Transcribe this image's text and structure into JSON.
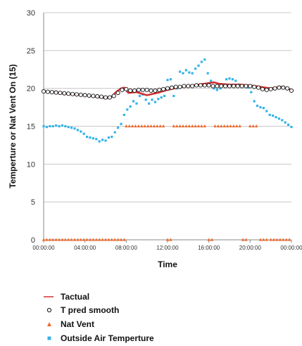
{
  "chart_data": {
    "type": "line",
    "xlabel": "Time",
    "ylabel": "Temperture or Nat Vent On (15)",
    "ylim": [
      0,
      30
    ],
    "yticks": [
      0,
      5,
      10,
      15,
      20,
      25,
      30
    ],
    "xlim": [
      0,
      24
    ],
    "xticks": [
      {
        "value": 0,
        "label": "00:00:00"
      },
      {
        "value": 4,
        "label": "04:00:00"
      },
      {
        "value": 8,
        "label": "08:00:00"
      },
      {
        "value": 12,
        "label": "12:00:00"
      },
      {
        "value": 16,
        "label": "16:00:00"
      },
      {
        "value": 20,
        "label": "20:00:00"
      },
      {
        "value": 24,
        "label": "00:00:00"
      }
    ],
    "grid": "horizontal",
    "legend_position": "bottom-left",
    "series": [
      {
        "name": "Tactual",
        "kind": "line",
        "color": "#d62f2f",
        "x": [
          0,
          1,
          2,
          3,
          4,
          5,
          6,
          6.5,
          7,
          7.5,
          7.8,
          8.2,
          9,
          10,
          11,
          12,
          13,
          14,
          15,
          16,
          16.5,
          17,
          18,
          19,
          20,
          21,
          22,
          23,
          24
        ],
        "y": [
          19.6,
          19.5,
          19.3,
          19.2,
          19.1,
          18.9,
          18.7,
          18.8,
          19.5,
          20.0,
          20.1,
          19.4,
          19.5,
          19.1,
          19.4,
          19.8,
          20.1,
          20.3,
          20.5,
          20.7,
          20.8,
          20.6,
          20.5,
          20.5,
          20.4,
          20.2,
          20.0,
          20.2,
          19.8
        ]
      },
      {
        "name": "T pred smooth",
        "kind": "circle",
        "color": "#111111",
        "x": [
          0,
          0.4,
          0.8,
          1.2,
          1.6,
          2,
          2.4,
          2.8,
          3.2,
          3.6,
          4,
          4.4,
          4.8,
          5.2,
          5.6,
          6,
          6.4,
          6.8,
          7.2,
          7.6,
          8,
          8.4,
          8.8,
          9.2,
          9.6,
          10,
          10.4,
          10.8,
          11.2,
          11.6,
          12,
          12.4,
          12.8,
          13.2,
          13.6,
          14,
          14.4,
          14.8,
          15.2,
          15.6,
          16,
          16.4,
          16.8,
          17.2,
          17.6,
          18,
          18.4,
          18.8,
          19.2,
          19.6,
          20,
          20.4,
          20.8,
          21.2,
          21.6,
          22,
          22.4,
          22.8,
          23.2,
          23.6,
          24
        ],
        "y": [
          19.6,
          19.55,
          19.5,
          19.45,
          19.4,
          19.35,
          19.3,
          19.25,
          19.2,
          19.15,
          19.1,
          19.05,
          19.0,
          18.95,
          18.9,
          18.8,
          18.8,
          19.0,
          19.4,
          19.8,
          19.9,
          19.7,
          19.7,
          19.8,
          19.8,
          19.8,
          19.7,
          19.7,
          19.8,
          19.9,
          20.0,
          20.1,
          20.2,
          20.2,
          20.3,
          20.3,
          20.3,
          20.4,
          20.4,
          20.4,
          20.4,
          20.3,
          20.3,
          20.3,
          20.3,
          20.3,
          20.3,
          20.3,
          20.3,
          20.3,
          20.3,
          20.2,
          20.1,
          19.9,
          19.8,
          19.9,
          20.0,
          20.1,
          20.1,
          20.0,
          19.7
        ]
      },
      {
        "name": "Nat Vent",
        "kind": "triangle",
        "color": "#f06a2c",
        "x": [
          0,
          0.3,
          0.6,
          0.9,
          1.2,
          1.5,
          1.8,
          2.1,
          2.4,
          2.7,
          3.0,
          3.3,
          3.6,
          3.9,
          4.2,
          4.5,
          4.8,
          5.1,
          5.4,
          5.7,
          6.0,
          6.3,
          6.6,
          6.9,
          7.2,
          7.5,
          7.8,
          8.0,
          8.3,
          8.6,
          8.9,
          9.2,
          9.5,
          9.8,
          10.1,
          10.4,
          10.7,
          11.0,
          11.3,
          11.6,
          12.0,
          12.3,
          12.6,
          12.9,
          13.2,
          13.5,
          13.8,
          14.1,
          14.4,
          14.7,
          15.0,
          15.3,
          15.6,
          16.0,
          16.3,
          16.6,
          16.9,
          17.2,
          17.5,
          17.8,
          18.1,
          18.4,
          18.7,
          19.0,
          19.3,
          19.6,
          20.0,
          20.3,
          20.6,
          21.0,
          21.3,
          21.6,
          22.0,
          22.3,
          22.6,
          22.9,
          23.2,
          23.5,
          23.8
        ],
        "y": [
          0,
          0,
          0,
          0,
          0,
          0,
          0,
          0,
          0,
          0,
          0,
          0,
          0,
          0,
          0,
          0,
          0,
          0,
          0,
          0,
          0,
          0,
          0,
          0,
          0,
          0,
          0,
          15,
          15,
          15,
          15,
          15,
          15,
          15,
          15,
          15,
          15,
          15,
          15,
          15,
          0,
          0,
          15,
          15,
          15,
          15,
          15,
          15,
          15,
          15,
          15,
          15,
          15,
          0,
          0,
          15,
          15,
          15,
          15,
          15,
          15,
          15,
          15,
          15,
          0,
          0,
          15,
          15,
          15,
          0,
          0,
          0,
          0,
          0,
          0,
          0,
          0,
          0,
          0
        ]
      },
      {
        "name": "Outside Air Temperture",
        "kind": "square",
        "color": "#36b3e8",
        "x": [
          0,
          0.3,
          0.6,
          0.9,
          1.2,
          1.5,
          1.8,
          2.1,
          2.4,
          2.7,
          3.0,
          3.3,
          3.6,
          3.9,
          4.2,
          4.5,
          4.8,
          5.1,
          5.4,
          5.7,
          6.0,
          6.3,
          6.6,
          6.9,
          7.2,
          7.5,
          7.8,
          8.1,
          8.4,
          8.7,
          9.0,
          9.3,
          9.6,
          9.9,
          10.2,
          10.5,
          10.8,
          11.1,
          11.4,
          11.7,
          12.0,
          12.3,
          12.6,
          12.9,
          13.2,
          13.5,
          13.8,
          14.1,
          14.4,
          14.7,
          15.0,
          15.3,
          15.6,
          15.9,
          16.2,
          16.5,
          16.8,
          17.1,
          17.4,
          17.7,
          18.0,
          18.3,
          18.6,
          18.9,
          19.2,
          19.5,
          19.8,
          20.1,
          20.4,
          20.7,
          21.0,
          21.3,
          21.6,
          21.9,
          22.2,
          22.5,
          22.8,
          23.1,
          23.4,
          23.7,
          24.0
        ],
        "y": [
          15.0,
          14.9,
          15.0,
          15.0,
          15.1,
          15.0,
          15.1,
          15.0,
          14.9,
          14.8,
          14.7,
          14.5,
          14.3,
          14.0,
          13.6,
          13.5,
          13.4,
          13.3,
          13.0,
          13.2,
          13.1,
          13.5,
          13.6,
          14.2,
          14.8,
          15.3,
          16.5,
          17.2,
          17.6,
          18.3,
          18.0,
          19.0,
          19.2,
          18.5,
          18.0,
          18.5,
          18.2,
          18.6,
          18.8,
          19.0,
          21.1,
          21.2,
          19.0,
          20.0,
          22.2,
          22.0,
          22.4,
          22.1,
          22.0,
          22.6,
          23.0,
          23.5,
          23.8,
          22.0,
          21.0,
          20.0,
          19.8,
          20.0,
          20.4,
          21.2,
          21.3,
          21.2,
          21.0,
          20.5,
          20.3,
          20.3,
          20.1,
          19.5,
          18.3,
          17.7,
          17.5,
          17.4,
          17.0,
          16.5,
          16.4,
          16.2,
          16.0,
          15.8,
          15.5,
          15.2,
          14.9
        ]
      }
    ]
  }
}
